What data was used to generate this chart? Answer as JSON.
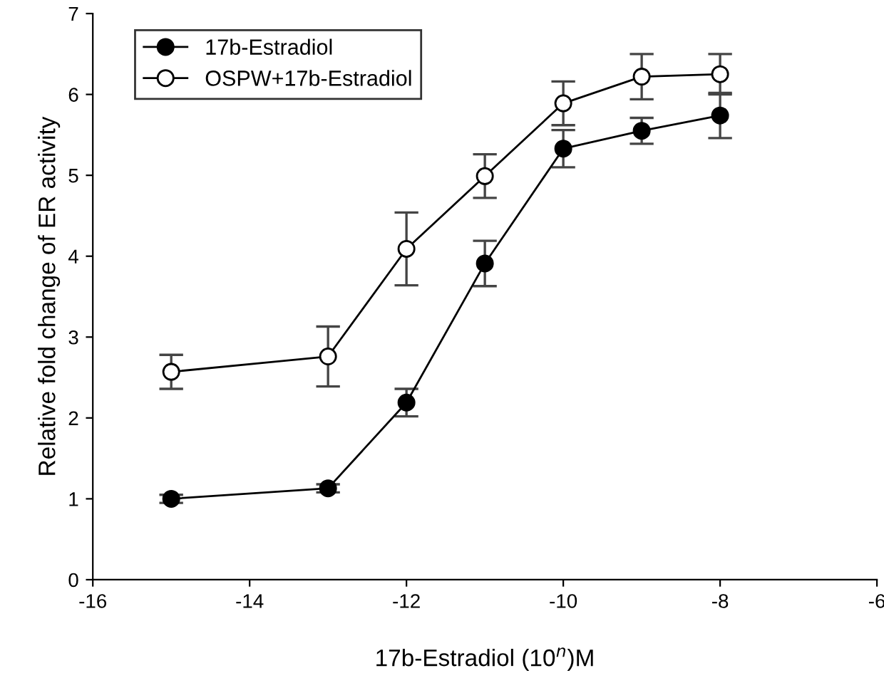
{
  "chart_data": {
    "type": "line",
    "xlabel": "17b-Estradiol (10$^{n}$)M",
    "ylabel": "Relative fold change of ER activity",
    "x": [
      -15,
      -13,
      -12,
      -11,
      -10,
      -9,
      -8
    ],
    "series": [
      {
        "name": "17b-Estradiol",
        "color": "#000000",
        "values": [
          1.0,
          1.13,
          2.19,
          3.91,
          5.33,
          5.55,
          5.74
        ],
        "errors": [
          0.05,
          0.05,
          0.17,
          0.28,
          0.23,
          0.16,
          0.28
        ]
      },
      {
        "name": "OSPW+17b-Estradiol",
        "color": "#ffffff",
        "values": [
          2.57,
          2.76,
          4.09,
          4.99,
          5.89,
          6.22,
          6.25
        ],
        "errors": [
          0.21,
          0.37,
          0.45,
          0.27,
          0.27,
          0.28,
          0.25
        ]
      }
    ],
    "xlim": [
      -16,
      -6
    ],
    "xticks": [
      -16,
      -14,
      -12,
      -10,
      -8,
      -6
    ],
    "ylim": [
      0,
      7
    ],
    "yticks": [
      0,
      1,
      2,
      3,
      4,
      5,
      6,
      7
    ],
    "marker": "circle",
    "line_style": "solid",
    "grid": false,
    "legend": "top left"
  }
}
